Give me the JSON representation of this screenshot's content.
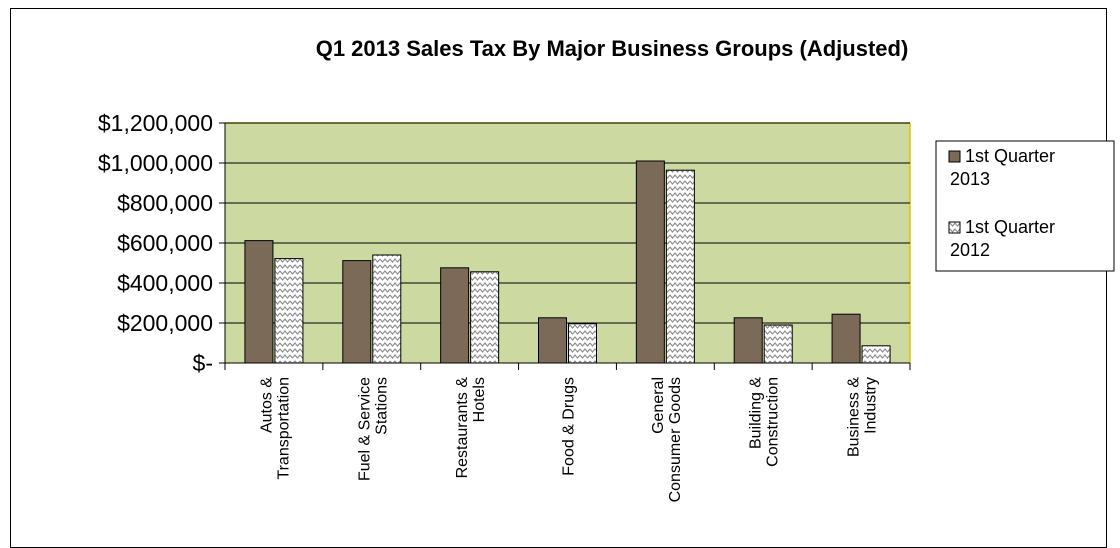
{
  "chart_data": {
    "type": "bar",
    "title": "Q1 2013  Sales Tax By Major Business Groups (Adjusted)",
    "categories": [
      [
        "Autos &",
        "Transportation"
      ],
      [
        "Fuel & Service",
        "Stations"
      ],
      [
        "Restaurants &",
        "Hotels"
      ],
      [
        "Food & Drugs"
      ],
      [
        "General",
        "Consumer Goods"
      ],
      [
        "Building &",
        "Construction"
      ],
      [
        "Business &",
        "Industry"
      ]
    ],
    "series": [
      {
        "name": [
          "1st Quarter",
          "2013"
        ],
        "values": [
          612000,
          512000,
          476000,
          226000,
          1010000,
          226000,
          244000
        ],
        "color": "#7a6a57",
        "pattern": "solid"
      },
      {
        "name": [
          "1st  Quarter",
          "2012"
        ],
        "values": [
          522000,
          540000,
          456000,
          196000,
          964000,
          190000,
          86000
        ],
        "color": "#ffffff",
        "pattern": "zigzag"
      }
    ],
    "ylim": [
      0,
      1200000
    ],
    "yticks": [
      0,
      200000,
      400000,
      600000,
      800000,
      1000000,
      1200000
    ],
    "ytick_labels": [
      "$-",
      "$200,000",
      "$400,000",
      "$600,000",
      "$800,000",
      "$1,000,000",
      "$1,200,000"
    ],
    "grid": true,
    "legend": "right",
    "plot_background": "#ccd9a0",
    "plot_border": "#d8c600"
  }
}
